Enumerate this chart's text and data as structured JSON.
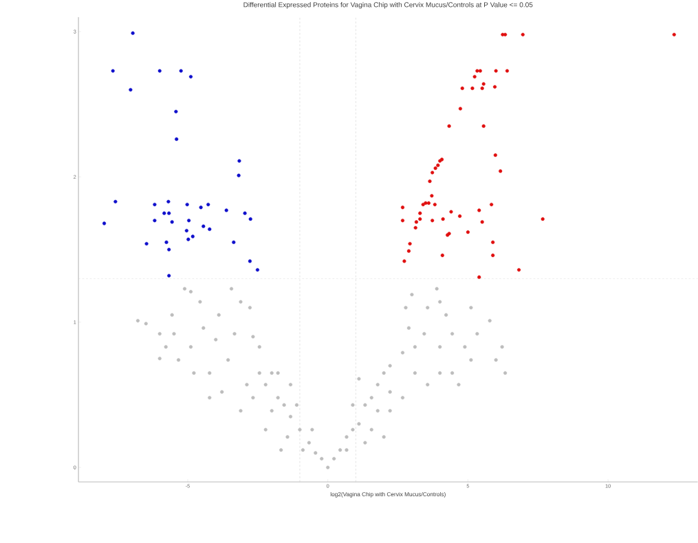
{
  "chart_data": {
    "type": "scatter",
    "title": "Differential Expressed Proteins for Vagina Chip with Cervix Mucus/Controls at P Value <= 0.05",
    "xlabel": "log2(Vagina Chip with Cervix Mucus/Controls)",
    "marker": "circle",
    "xlim": [
      -8.9,
      13.2
    ],
    "ylim": [
      -0.1,
      3.1
    ],
    "xticks": [
      -5,
      0,
      5,
      10
    ],
    "yticks": [
      0,
      1,
      2,
      3
    ],
    "ref_lines": [
      {
        "axis": "x",
        "value": -1,
        "color": "#cccccc",
        "line_style": "dashed"
      },
      {
        "axis": "x",
        "value": 1,
        "color": "#cccccc",
        "line_style": "dashed"
      },
      {
        "axis": "y",
        "value": 1.3,
        "color": "#cccccc",
        "line_style": "dashed"
      }
    ],
    "series": [
      {
        "color": "#bdbdbd",
        "x": [
          -6.78,
          -6.49,
          -6.0,
          -5.78,
          -5.49,
          -5.11,
          -4.89,
          -4.56,
          -4.22,
          -3.89,
          -3.56,
          -3.11,
          -2.78,
          -2.67,
          -2.44,
          -2.22,
          -2.0,
          -1.78,
          -1.56,
          -1.33,
          -1.0,
          -0.67,
          -0.44,
          -0.22,
          -3.33,
          -4.0,
          -4.44,
          -4.89,
          -5.33,
          -2.44,
          -2.89,
          -1.78,
          -1.33,
          -2.67,
          -2.0,
          -1.44,
          -0.89,
          -0.56,
          -1.11,
          -3.78,
          -3.11,
          -2.22,
          -1.67,
          -5.56,
          -4.78,
          -4.22,
          -3.44,
          -6.0,
          0.22,
          0.44,
          0.67,
          0.89,
          1.11,
          1.33,
          1.56,
          1.78,
          2.0,
          2.22,
          2.67,
          3.11,
          3.56,
          4.0,
          4.44,
          4.89,
          5.33,
          5.78,
          6.22,
          6.33,
          6.0,
          3.0,
          2.78,
          3.89,
          4.22,
          5.11,
          1.11,
          2.22,
          1.78,
          2.67,
          3.56,
          4.44,
          5.11,
          0.89,
          1.56,
          2.22,
          3.11,
          4.0,
          0.67,
          1.33,
          2.0,
          4.0,
          4.67,
          2.89,
          3.44,
          0
        ],
        "values": [
          1.01,
          0.99,
          0.75,
          0.83,
          0.92,
          1.23,
          1.21,
          1.14,
          0.65,
          1.05,
          0.74,
          1.14,
          1.1,
          0.9,
          0.83,
          0.57,
          0.65,
          0.48,
          0.43,
          0.35,
          0.26,
          0.17,
          0.1,
          0.06,
          0.92,
          0.88,
          0.96,
          0.83,
          0.74,
          0.65,
          0.57,
          0.65,
          0.57,
          0.48,
          0.39,
          0.21,
          0.12,
          0.26,
          0.43,
          0.52,
          0.39,
          0.26,
          0.12,
          1.05,
          0.65,
          0.48,
          1.23,
          0.92,
          0.06,
          0.12,
          0.21,
          0.26,
          0.3,
          0.43,
          0.48,
          0.57,
          0.65,
          0.7,
          0.79,
          0.83,
          1.1,
          1.14,
          0.92,
          0.83,
          0.92,
          1.01,
          0.83,
          0.65,
          0.74,
          1.19,
          1.1,
          1.23,
          1.05,
          1.1,
          0.61,
          0.52,
          0.39,
          0.48,
          0.57,
          0.65,
          0.74,
          0.43,
          0.26,
          0.39,
          0.65,
          0.83,
          0.12,
          0.17,
          0.21,
          0.65,
          0.57,
          0.96,
          0.92,
          0
        ]
      },
      {
        "color": "#1010cc",
        "x": [
          -7.67,
          -6.0,
          -5.24,
          -4.89,
          -7.04,
          -5.42,
          -5.4,
          -3.16,
          -3.18,
          -7.58,
          -5.69,
          -6.18,
          -5.84,
          -5.67,
          -5.02,
          -4.53,
          -4.27,
          -3.62,
          -2.96,
          -2.76,
          -6.18,
          -5.56,
          -4.96,
          -4.44,
          -4.22,
          -5.04,
          -4.82,
          -4.98,
          -7.98,
          -6.47,
          -5.76,
          -5.67,
          -3.36,
          -2.78,
          -2.51,
          -5.67,
          -6.96
        ],
        "values": [
          2.73,
          2.73,
          2.73,
          2.69,
          2.6,
          2.45,
          2.26,
          2.11,
          2.01,
          1.83,
          1.83,
          1.81,
          1.75,
          1.75,
          1.81,
          1.79,
          1.81,
          1.77,
          1.75,
          1.71,
          1.7,
          1.69,
          1.7,
          1.66,
          1.64,
          1.63,
          1.59,
          1.57,
          1.68,
          1.54,
          1.55,
          1.5,
          1.55,
          1.42,
          1.36,
          1.32,
          2.99
        ]
      },
      {
        "color": "#e01010",
        "x": [
          6.24,
          6.33,
          6.96,
          12.36,
          5.33,
          5.44,
          6.0,
          6.4,
          5.24,
          5.56,
          5.96,
          4.8,
          5.16,
          5.51,
          4.73,
          4.33,
          5.56,
          4.0,
          3.93,
          3.84,
          3.73,
          4.07,
          3.64,
          3.71,
          3.49,
          3.4,
          3.6,
          3.82,
          2.67,
          5.98,
          6.16,
          5.84,
          5.4,
          4.4,
          3.29,
          2.67,
          3.29,
          3.16,
          3.73,
          4.11,
          4.71,
          5.51,
          3.13,
          4.33,
          4.27,
          5.0,
          5.89,
          2.93,
          2.89,
          4.09,
          2.73,
          5.89,
          6.82,
          5.4,
          7.67
        ],
        "values": [
          2.98,
          2.98,
          2.98,
          2.98,
          2.73,
          2.73,
          2.73,
          2.73,
          2.69,
          2.64,
          2.62,
          2.61,
          2.61,
          2.61,
          2.47,
          2.35,
          2.35,
          2.11,
          2.08,
          2.06,
          2.03,
          2.12,
          1.97,
          1.87,
          1.82,
          1.81,
          1.82,
          1.81,
          1.79,
          2.15,
          2.04,
          1.81,
          1.77,
          1.76,
          1.75,
          1.7,
          1.71,
          1.69,
          1.7,
          1.71,
          1.73,
          1.69,
          1.65,
          1.61,
          1.6,
          1.62,
          1.55,
          1.54,
          1.49,
          1.46,
          1.42,
          1.46,
          1.36,
          1.31,
          1.71
        ]
      }
    ]
  }
}
